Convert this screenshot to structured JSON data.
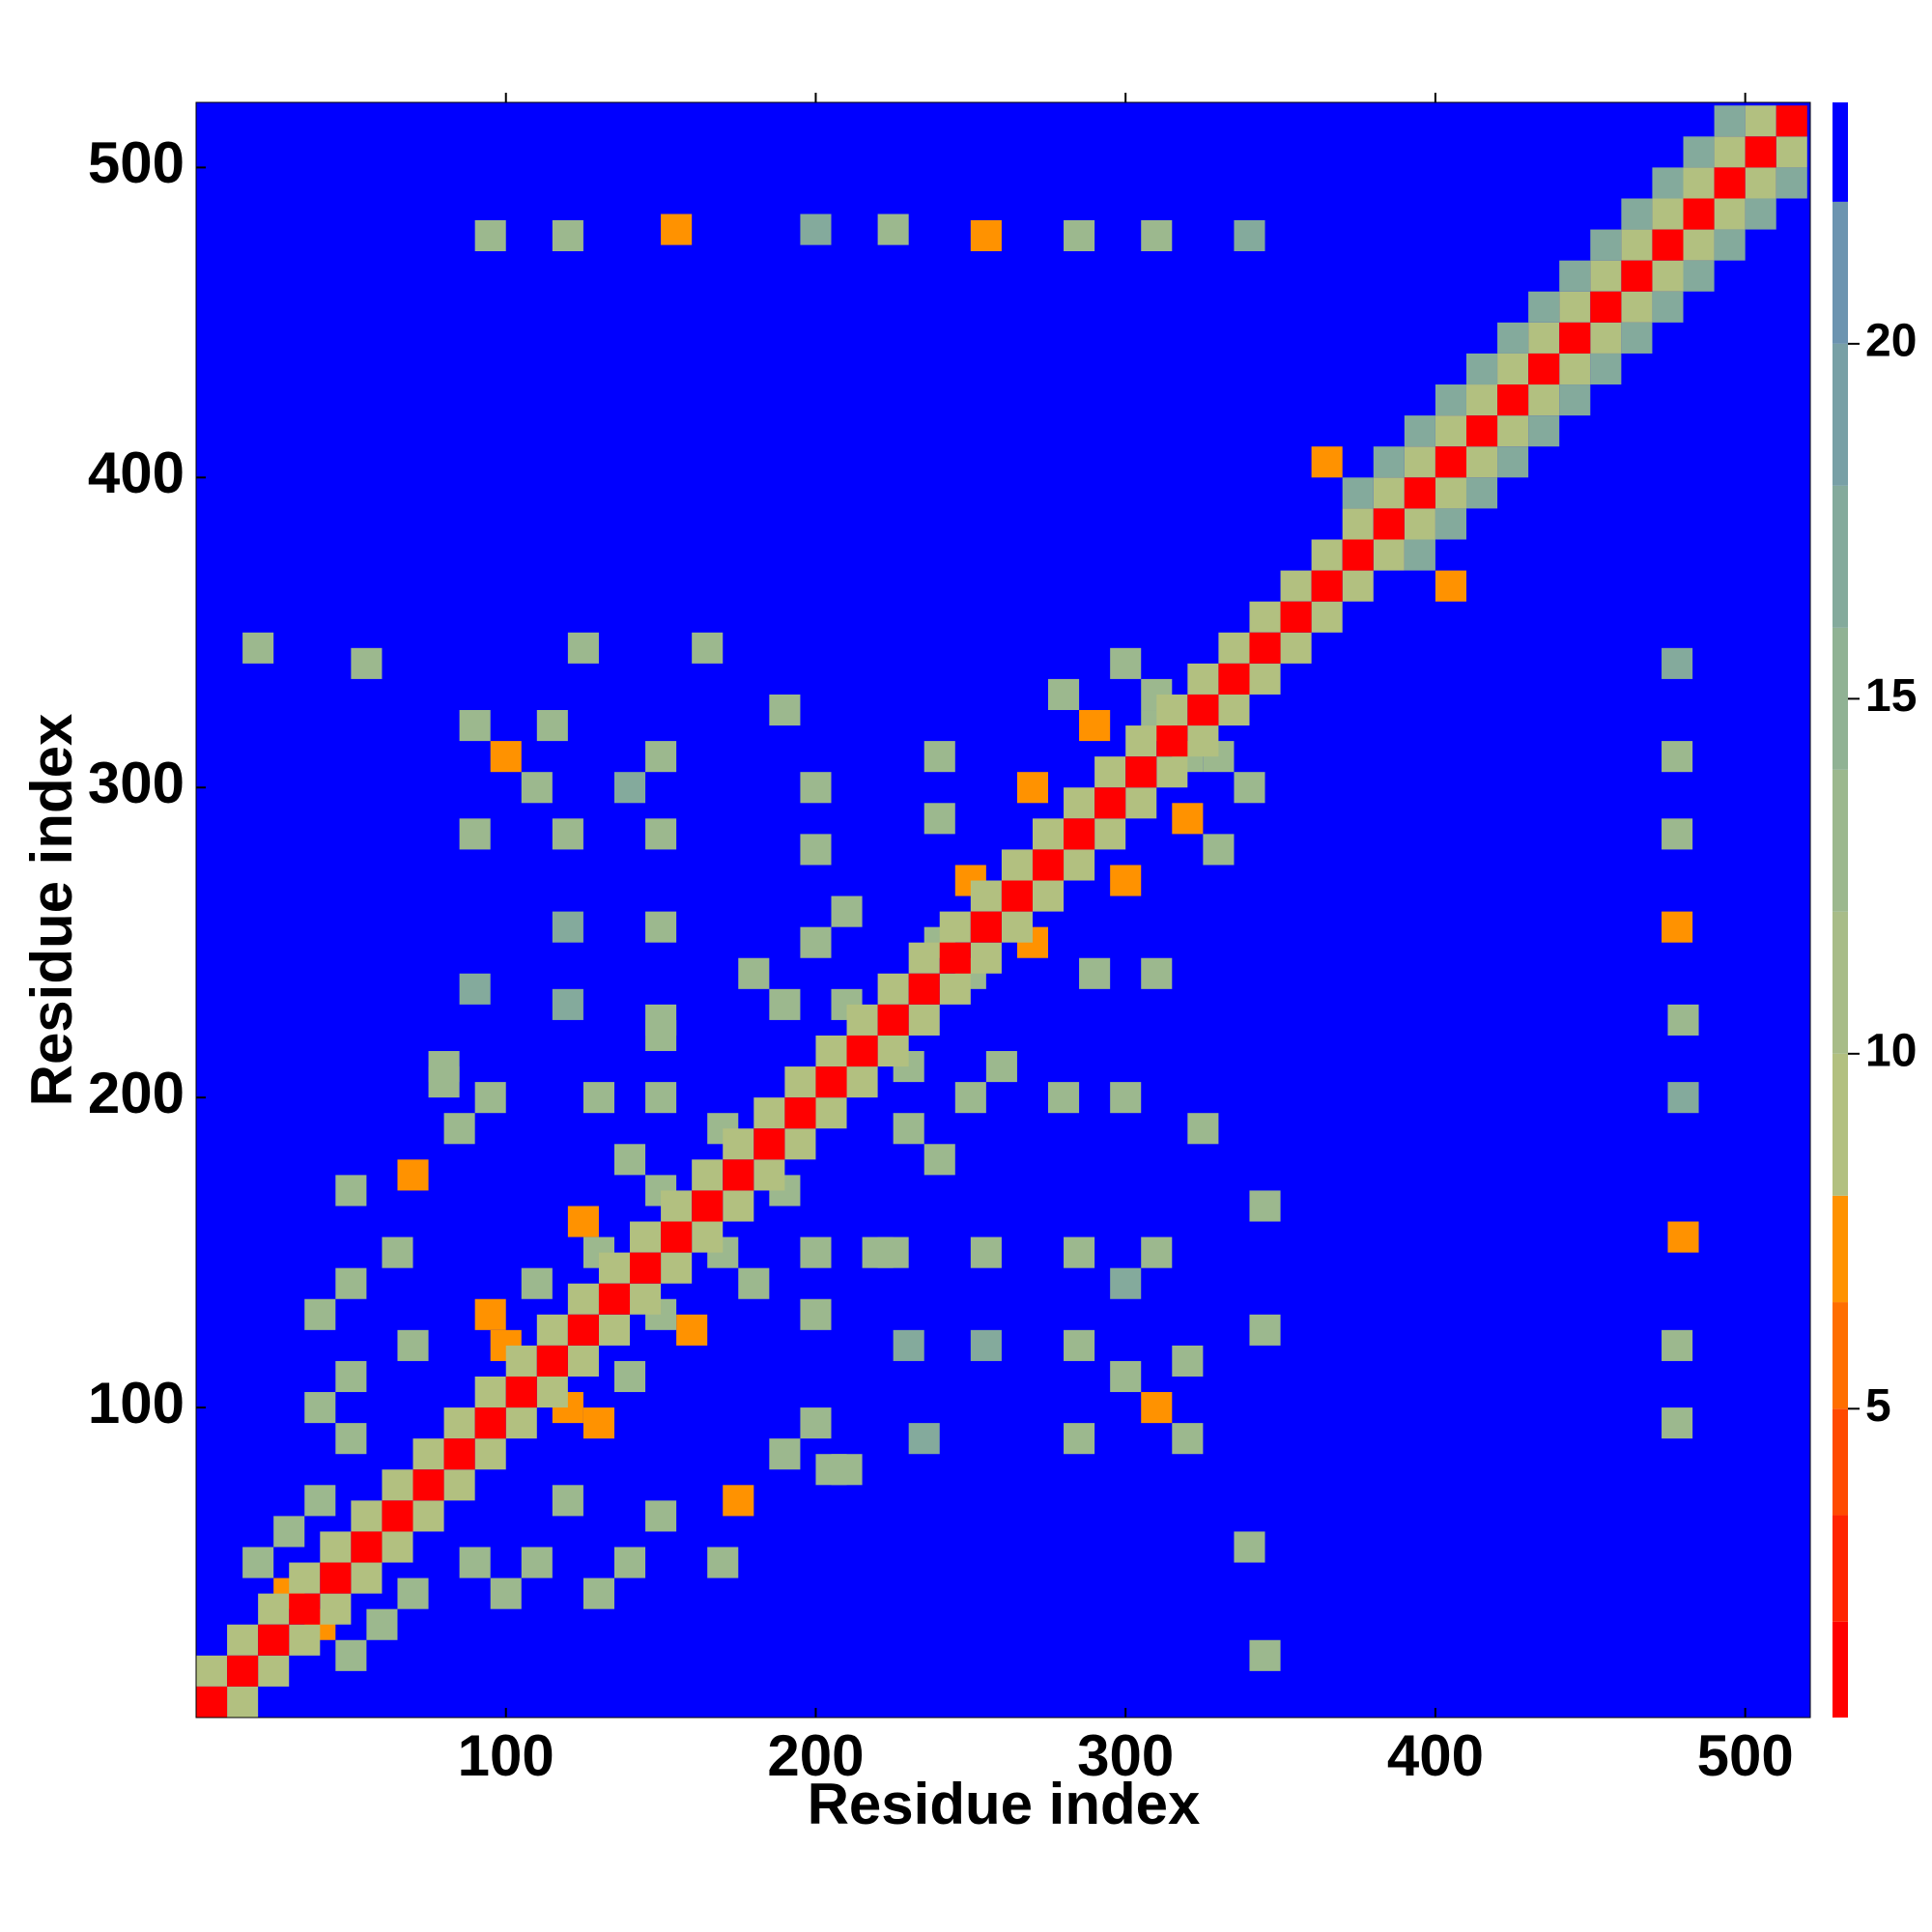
{
  "chart_data": {
    "type": "heatmap",
    "xlabel": "Residue index",
    "ylabel": "Residue index",
    "xlim": [
      0,
      521
    ],
    "ylim": [
      0,
      521
    ],
    "xticks": [
      100,
      200,
      300,
      400,
      500
    ],
    "yticks": [
      100,
      200,
      300,
      400,
      500
    ],
    "symmetric": true,
    "colorbar": {
      "levels": [
        0.65,
        2,
        3.5,
        5,
        6.5,
        8,
        10,
        12,
        14,
        16,
        18,
        20,
        22,
        23.4
      ],
      "colors": [
        "#ff0000",
        "#ff2400",
        "#ff4a00",
        "#ff6e00",
        "#ff9200",
        "#b2c080",
        "#a8bc88",
        "#9cb88e",
        "#90b294",
        "#84aa9c",
        "#78a0a6",
        "#6c94b0",
        "#0000ff"
      ],
      "ticks": [
        5,
        10,
        15,
        20
      ]
    },
    "cells": [
      [
        478,
        95,
        13
      ],
      [
        478,
        120,
        13
      ],
      [
        480,
        155,
        7
      ],
      [
        480,
        200,
        17
      ],
      [
        480,
        225,
        13
      ],
      [
        478,
        255,
        7
      ],
      [
        478,
        285,
        13
      ],
      [
        478,
        310,
        13
      ],
      [
        478,
        340,
        17
      ],
      [
        345,
        125,
        13
      ],
      [
        345,
        165,
        13
      ],
      [
        340,
        55,
        13
      ],
      [
        345,
        20,
        13
      ],
      [
        310,
        100,
        7
      ],
      [
        320,
        90,
        13
      ],
      [
        300,
        140,
        17
      ],
      [
        310,
        150,
        13
      ],
      [
        285,
        150,
        13
      ],
      [
        285,
        90,
        13
      ],
      [
        285,
        120,
        13
      ],
      [
        255,
        120,
        17
      ],
      [
        255,
        150,
        13
      ],
      [
        235,
        90,
        17
      ],
      [
        230,
        120,
        17
      ],
      [
        200,
        150,
        13
      ],
      [
        205,
        80,
        13
      ],
      [
        225,
        150,
        13
      ],
      [
        320,
        115,
        13
      ],
      [
        300,
        110,
        13
      ],
      [
        280,
        200,
        13
      ],
      [
        300,
        200,
        13
      ],
      [
        325,
        190,
        13
      ],
      [
        260,
        210,
        13
      ],
      [
        310,
        240,
        13
      ],
      [
        290,
        240,
        13
      ],
      [
        330,
        280,
        13
      ],
      [
        300,
        270,
        7
      ],
      [
        320,
        310,
        13
      ],
      [
        310,
        330,
        13
      ],
      [
        290,
        320,
        7
      ],
      [
        340,
        300,
        13
      ],
      [
        270,
        250,
        7
      ],
      [
        250,
        240,
        13
      ],
      [
        130,
        40,
        13
      ],
      [
        140,
        50,
        13
      ],
      [
        150,
        65,
        13
      ],
      [
        170,
        50,
        13
      ],
      [
        175,
        70,
        7
      ],
      [
        190,
        85,
        13
      ],
      [
        210,
        80,
        13
      ],
      [
        200,
        95,
        13
      ],
      [
        220,
        150,
        13
      ],
      [
        200,
        130,
        13
      ],
      [
        180,
        140,
        13
      ],
      [
        160,
        125,
        7
      ],
      [
        140,
        110,
        13
      ],
      [
        130,
        95,
        7
      ],
      [
        120,
        70,
        13
      ],
      [
        110,
        50,
        13
      ],
      [
        100,
        40,
        13
      ],
      [
        90,
        50,
        13
      ],
      [
        60,
        30,
        13
      ],
      [
        50,
        20,
        13
      ],
      [
        40,
        30,
        7
      ],
      [
        70,
        40,
        13
      ],
      [
        120,
        100,
        7
      ],
      [
        150,
        130,
        13
      ],
      [
        170,
        150,
        13
      ],
      [
        190,
        170,
        13
      ],
      [
        230,
        190,
        13
      ],
      [
        240,
        180,
        13
      ],
      [
        230,
        210,
        13
      ],
      [
        250,
        200,
        13
      ],
      [
        405,
        365,
        7
      ],
      [
        395,
        375,
        17
      ],
      [
        405,
        385,
        17
      ],
      [
        415,
        395,
        17
      ],
      [
        425,
        405,
        17
      ],
      [
        435,
        415,
        17
      ],
      [
        445,
        425,
        17
      ],
      [
        455,
        435,
        17
      ],
      [
        465,
        445,
        17
      ],
      [
        475,
        455,
        17
      ],
      [
        485,
        465,
        17
      ],
      [
        495,
        475,
        17
      ],
      [
        505,
        485,
        17
      ],
      [
        515,
        495,
        17
      ],
      [
        15,
        5,
        10
      ],
      [
        25,
        15,
        10
      ],
      [
        35,
        25,
        10
      ],
      [
        45,
        35,
        10
      ],
      [
        55,
        45,
        10
      ],
      [
        65,
        55,
        10
      ],
      [
        75,
        65,
        10
      ],
      [
        85,
        75,
        10
      ],
      [
        95,
        85,
        10
      ],
      [
        105,
        95,
        10
      ],
      [
        115,
        105,
        10
      ],
      [
        125,
        115,
        10
      ],
      [
        135,
        125,
        10
      ],
      [
        145,
        135,
        10
      ],
      [
        155,
        145,
        10
      ],
      [
        165,
        155,
        10
      ],
      [
        175,
        165,
        10
      ],
      [
        185,
        175,
        10
      ],
      [
        195,
        185,
        10
      ],
      [
        205,
        195,
        10
      ],
      [
        215,
        205,
        10
      ],
      [
        225,
        215,
        10
      ],
      [
        235,
        225,
        10
      ],
      [
        245,
        235,
        10
      ],
      [
        255,
        245,
        10
      ],
      [
        265,
        255,
        10
      ],
      [
        275,
        265,
        10
      ],
      [
        285,
        275,
        10
      ],
      [
        295,
        285,
        10
      ],
      [
        305,
        295,
        10
      ],
      [
        315,
        305,
        10
      ],
      [
        325,
        315,
        10
      ],
      [
        335,
        325,
        10
      ],
      [
        345,
        335,
        10
      ],
      [
        355,
        345,
        10
      ],
      [
        365,
        355,
        10
      ],
      [
        375,
        365,
        10
      ],
      [
        385,
        375,
        10
      ],
      [
        395,
        385,
        10
      ],
      [
        405,
        395,
        10
      ],
      [
        415,
        405,
        10
      ],
      [
        425,
        415,
        10
      ],
      [
        435,
        425,
        10
      ],
      [
        445,
        435,
        10
      ],
      [
        455,
        445,
        10
      ],
      [
        465,
        455,
        10
      ],
      [
        475,
        465,
        10
      ],
      [
        485,
        475,
        10
      ],
      [
        495,
        485,
        10
      ],
      [
        505,
        495,
        10
      ],
      [
        515,
        505,
        10
      ],
      [
        5,
        5,
        1
      ],
      [
        15,
        15,
        1
      ],
      [
        25,
        25,
        1
      ],
      [
        35,
        35,
        1
      ],
      [
        45,
        45,
        1
      ],
      [
        55,
        55,
        1
      ],
      [
        65,
        65,
        1
      ],
      [
        75,
        75,
        1
      ],
      [
        85,
        85,
        1
      ],
      [
        95,
        95,
        1
      ],
      [
        105,
        105,
        1
      ],
      [
        115,
        115,
        1
      ],
      [
        125,
        125,
        1
      ],
      [
        135,
        135,
        1
      ],
      [
        145,
        145,
        1
      ],
      [
        155,
        155,
        1
      ],
      [
        165,
        165,
        1
      ],
      [
        175,
        175,
        1
      ],
      [
        185,
        185,
        1
      ],
      [
        195,
        195,
        1
      ],
      [
        205,
        205,
        1
      ],
      [
        215,
        215,
        1
      ],
      [
        225,
        225,
        1
      ],
      [
        235,
        235,
        1
      ],
      [
        245,
        245,
        1
      ],
      [
        255,
        255,
        1
      ],
      [
        265,
        265,
        1
      ],
      [
        275,
        275,
        1
      ],
      [
        285,
        285,
        1
      ],
      [
        295,
        295,
        1
      ],
      [
        305,
        305,
        1
      ],
      [
        315,
        315,
        1
      ],
      [
        325,
        325,
        1
      ],
      [
        335,
        335,
        1
      ],
      [
        345,
        345,
        1
      ],
      [
        355,
        355,
        1
      ],
      [
        365,
        365,
        1
      ],
      [
        375,
        375,
        1
      ],
      [
        385,
        385,
        1
      ],
      [
        395,
        395,
        1
      ],
      [
        405,
        405,
        1
      ],
      [
        415,
        415,
        1
      ],
      [
        425,
        425,
        1
      ],
      [
        435,
        435,
        1
      ],
      [
        445,
        445,
        1
      ],
      [
        455,
        455,
        1
      ],
      [
        465,
        465,
        1
      ],
      [
        475,
        475,
        1
      ],
      [
        485,
        485,
        1
      ],
      [
        495,
        495,
        1
      ],
      [
        505,
        505,
        1
      ],
      [
        515,
        515,
        1
      ]
    ]
  }
}
